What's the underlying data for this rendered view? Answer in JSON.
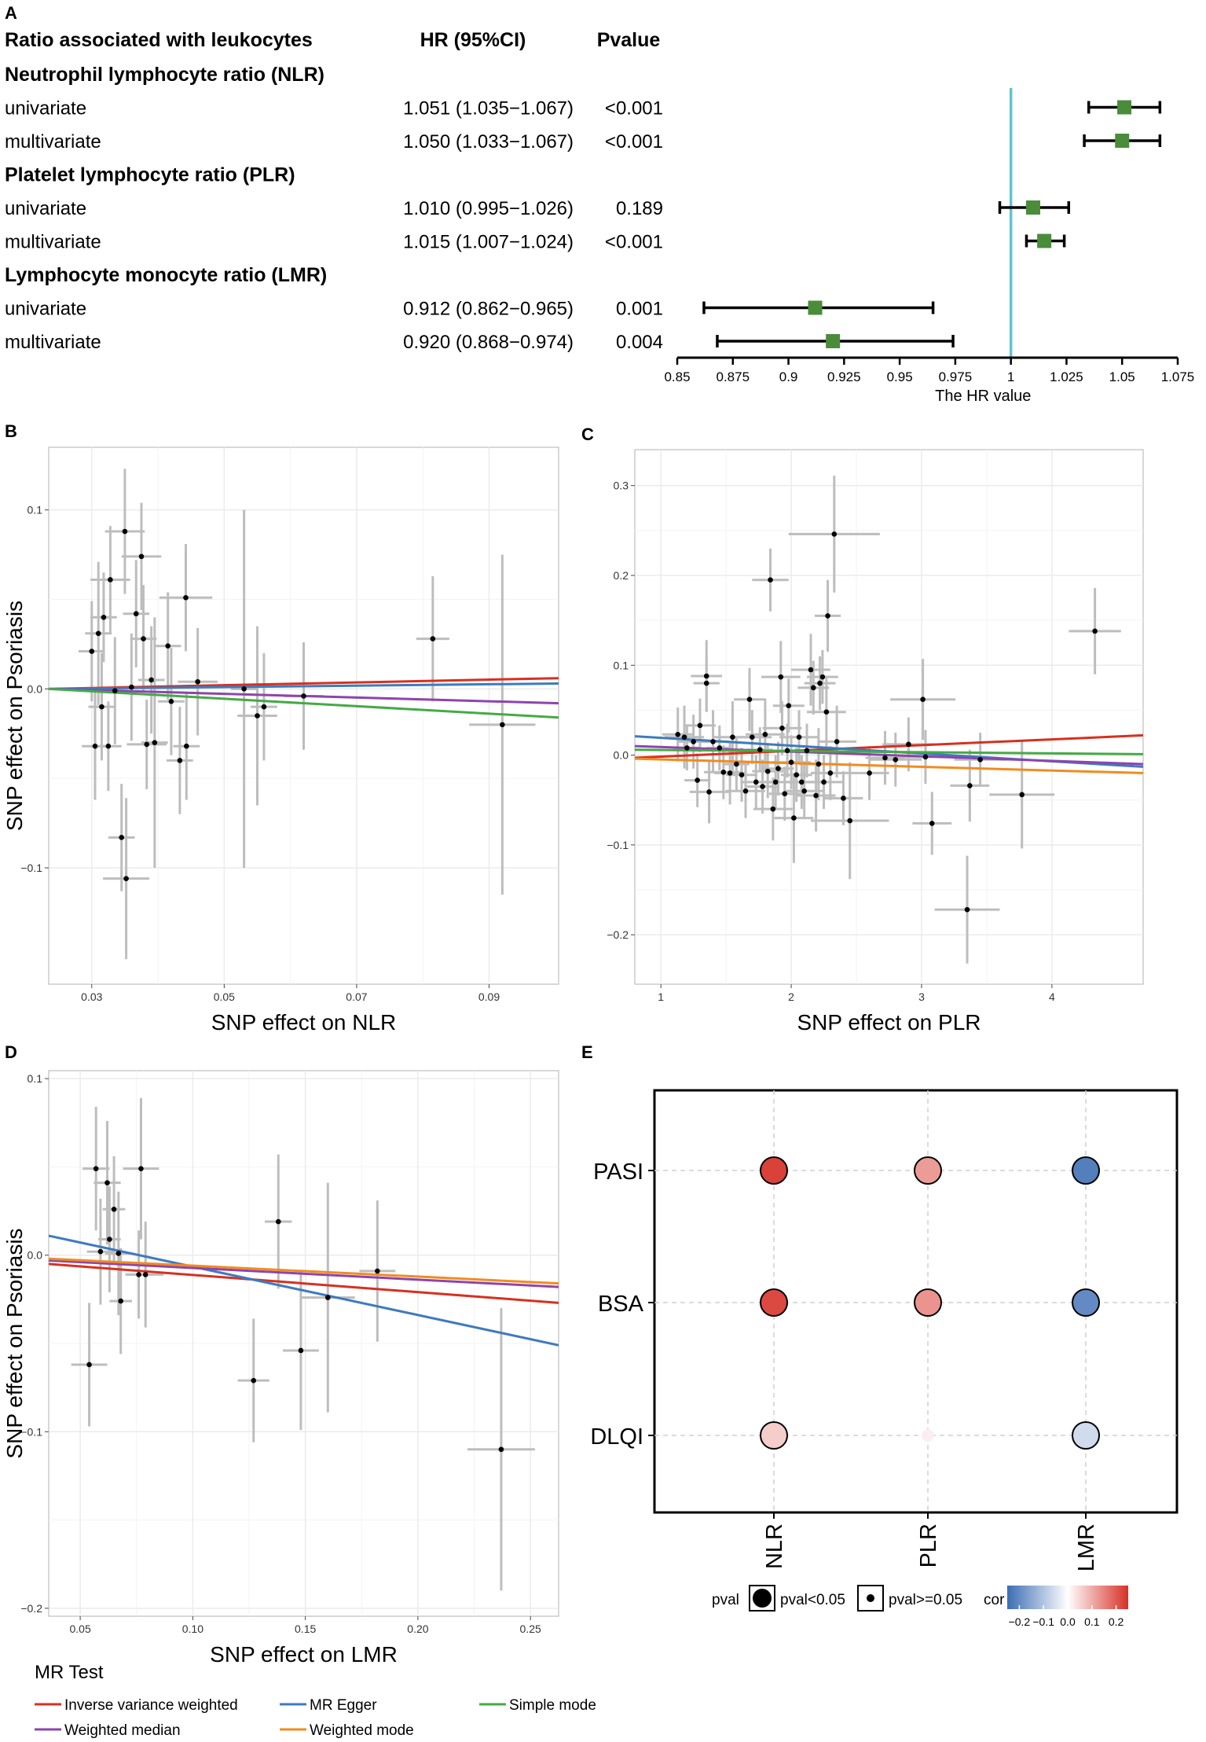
{
  "panel_labels": {
    "a": "A",
    "b": "B",
    "c": "C",
    "d": "D",
    "e": "E"
  },
  "chart_data": [
    {
      "id": "A",
      "type": "forest",
      "headers": {
        "group": "Ratio associated with leukocytes",
        "hr": "HR (95%CI)",
        "p": "Pvalue"
      },
      "rows": [
        {
          "label": "Neutrophil lymphocyte ratio (NLR)",
          "heading": true
        },
        {
          "label": "univariate",
          "hr_text": "1.051 (1.035−1.067)",
          "p_text": "<0.001",
          "hr": 1.051,
          "lo": 1.035,
          "hi": 1.067
        },
        {
          "label": "multivariate",
          "hr_text": "1.050 (1.033−1.067)",
          "p_text": "<0.001",
          "hr": 1.05,
          "lo": 1.033,
          "hi": 1.067
        },
        {
          "label": "Platelet lymphocyte ratio (PLR)",
          "heading": true
        },
        {
          "label": "univariate",
          "hr_text": "1.010 (0.995−1.026)",
          "p_text": "0.189",
          "hr": 1.01,
          "lo": 0.995,
          "hi": 1.026
        },
        {
          "label": "multivariate",
          "hr_text": "1.015 (1.007−1.024)",
          "p_text": "<0.001",
          "hr": 1.015,
          "lo": 1.007,
          "hi": 1.024
        },
        {
          "label": "Lymphocyte monocyte ratio (LMR)",
          "heading": true
        },
        {
          "label": "univariate",
          "hr_text": "0.912 (0.862−0.965)",
          "p_text": "0.001",
          "hr": 0.912,
          "lo": 0.862,
          "hi": 0.965
        },
        {
          "label": "multivariate",
          "hr_text": "0.920 (0.868−0.974)",
          "p_text": "0.004",
          "hr": 0.92,
          "lo": 0.868,
          "hi": 0.974
        }
      ],
      "ref_line": 1,
      "xlim": [
        0.85,
        1.075
      ],
      "ticks": [
        0.85,
        0.875,
        0.9,
        0.925,
        0.95,
        0.975,
        1,
        1.025,
        1.05,
        1.075
      ],
      "tick_labels": [
        "0.85",
        "0.875",
        "0.9",
        "0.925",
        "0.95",
        "0.975",
        "1",
        "1.025",
        "1.05",
        "1.075"
      ],
      "xlabel": "The HR value",
      "colors": {
        "marker": "#4a8c3a",
        "ref": "#5fc4d0"
      }
    },
    {
      "id": "B",
      "type": "scatter",
      "xlabel": "SNP effect on NLR",
      "ylabel": "SNP effect on Psoriasis",
      "xlim": [
        0.0235,
        0.1005
      ],
      "ylim": [
        -0.165,
        0.135
      ],
      "xticks": [
        0.03,
        0.05,
        0.07,
        0.09
      ],
      "xtick_labels": [
        "0.03",
        "0.05",
        "0.07",
        "0.09"
      ],
      "yticks": [
        -0.1,
        0.0,
        0.1
      ],
      "ytick_labels": [
        "−0.1",
        "0.0",
        "0.1"
      ],
      "points": [
        {
          "x": 0.03,
          "y": 0.021,
          "xe": 0.002,
          "ye": 0.028
        },
        {
          "x": 0.0305,
          "y": -0.032,
          "xe": 0.002,
          "ye": 0.03
        },
        {
          "x": 0.031,
          "y": 0.031,
          "xe": 0.002,
          "ye": 0.04
        },
        {
          "x": 0.0315,
          "y": -0.01,
          "xe": 0.002,
          "ye": 0.03
        },
        {
          "x": 0.0318,
          "y": 0.04,
          "xe": 0.002,
          "ye": 0.025
        },
        {
          "x": 0.0325,
          "y": -0.032,
          "xe": 0.002,
          "ye": 0.025
        },
        {
          "x": 0.0328,
          "y": 0.061,
          "xe": 0.003,
          "ye": 0.03
        },
        {
          "x": 0.0335,
          "y": -0.001,
          "xe": 0.002,
          "ye": 0.03
        },
        {
          "x": 0.0345,
          "y": -0.083,
          "xe": 0.002,
          "ye": 0.03
        },
        {
          "x": 0.035,
          "y": 0.088,
          "xe": 0.003,
          "ye": 0.035
        },
        {
          "x": 0.0352,
          "y": -0.106,
          "xe": 0.0035,
          "ye": 0.045
        },
        {
          "x": 0.036,
          "y": 0.001,
          "xe": 0.002,
          "ye": 0.03
        },
        {
          "x": 0.0367,
          "y": 0.042,
          "xe": 0.002,
          "ye": 0.03
        },
        {
          "x": 0.0375,
          "y": 0.074,
          "xe": 0.003,
          "ye": 0.03
        },
        {
          "x": 0.0378,
          "y": 0.028,
          "xe": 0.002,
          "ye": 0.03
        },
        {
          "x": 0.0383,
          "y": -0.031,
          "xe": 0.003,
          "ye": 0.025
        },
        {
          "x": 0.039,
          "y": 0.005,
          "xe": 0.002,
          "ye": 0.03
        },
        {
          "x": 0.0395,
          "y": -0.03,
          "xe": 0.002,
          "ye": 0.07
        },
        {
          "x": 0.0415,
          "y": 0.024,
          "xe": 0.002,
          "ye": 0.03
        },
        {
          "x": 0.042,
          "y": -0.007,
          "xe": 0.002,
          "ye": 0.03
        },
        {
          "x": 0.0433,
          "y": -0.04,
          "xe": 0.002,
          "ye": 0.03
        },
        {
          "x": 0.0442,
          "y": 0.051,
          "xe": 0.004,
          "ye": 0.03
        },
        {
          "x": 0.0443,
          "y": -0.032,
          "xe": 0.002,
          "ye": 0.03
        },
        {
          "x": 0.046,
          "y": 0.004,
          "xe": 0.003,
          "ye": 0.03
        },
        {
          "x": 0.053,
          "y": 0.0,
          "xe": 0.002,
          "ye": 0.1
        },
        {
          "x": 0.055,
          "y": -0.015,
          "xe": 0.003,
          "ye": 0.05
        },
        {
          "x": 0.056,
          "y": -0.01,
          "xe": 0.002,
          "ye": 0.03
        },
        {
          "x": 0.062,
          "y": -0.004,
          "xe": 0.003,
          "ye": 0.03
        },
        {
          "x": 0.0815,
          "y": 0.028,
          "xe": 0.0025,
          "ye": 0.035
        },
        {
          "x": 0.092,
          "y": -0.02,
          "xe": 0.005,
          "ye": 0.095
        }
      ],
      "lines": [
        {
          "method": "Inverse variance weighted",
          "y0": 0.0,
          "y1": 0.006
        },
        {
          "method": "MR Egger",
          "y0": 0.0,
          "y1": 0.003
        },
        {
          "method": "Weighted median",
          "y0": 0.0,
          "y1": -0.008
        },
        {
          "method": "Simple mode",
          "y0": 0.0,
          "y1": -0.016
        }
      ]
    },
    {
      "id": "C",
      "type": "scatter",
      "xlabel": "SNP effect on PLR",
      "ylabel": "",
      "xlim": [
        0.8,
        4.7
      ],
      "ylim": [
        -0.255,
        0.34
      ],
      "xticks": [
        1,
        2,
        3,
        4
      ],
      "xtick_labels": [
        "1",
        "2",
        "3",
        "4"
      ],
      "yticks": [
        -0.2,
        -0.1,
        0.0,
        0.1,
        0.2,
        0.3
      ],
      "ytick_labels": [
        "−0.2",
        "−0.1",
        "0.0",
        "0.1",
        "0.2",
        "0.3"
      ],
      "points": [
        {
          "x": 1.13,
          "y": 0.023,
          "xe": 0.12,
          "ye": 0.03
        },
        {
          "x": 1.18,
          "y": 0.02,
          "xe": 0.15,
          "ye": 0.035
        },
        {
          "x": 1.2,
          "y": 0.008,
          "xe": 0.1,
          "ye": 0.025
        },
        {
          "x": 1.25,
          "y": 0.015,
          "xe": 0.12,
          "ye": 0.03
        },
        {
          "x": 1.28,
          "y": -0.028,
          "xe": 0.1,
          "ye": 0.03
        },
        {
          "x": 1.3,
          "y": 0.033,
          "xe": 0.12,
          "ye": 0.03
        },
        {
          "x": 1.35,
          "y": 0.088,
          "xe": 0.12,
          "ye": 0.04
        },
        {
          "x": 1.35,
          "y": 0.08,
          "xe": 0.1,
          "ye": 0.03
        },
        {
          "x": 1.37,
          "y": -0.041,
          "xe": 0.15,
          "ye": 0.035
        },
        {
          "x": 1.4,
          "y": 0.015,
          "xe": 0.12,
          "ye": 0.035
        },
        {
          "x": 1.45,
          "y": 0.008,
          "xe": 0.1,
          "ye": 0.025
        },
        {
          "x": 1.48,
          "y": -0.019,
          "xe": 0.15,
          "ye": 0.03
        },
        {
          "x": 1.53,
          "y": -0.02,
          "xe": 0.12,
          "ye": 0.035
        },
        {
          "x": 1.55,
          "y": 0.02,
          "xe": 0.15,
          "ye": 0.04
        },
        {
          "x": 1.58,
          "y": -0.01,
          "xe": 0.1,
          "ye": 0.03
        },
        {
          "x": 1.62,
          "y": -0.022,
          "xe": 0.12,
          "ye": 0.03
        },
        {
          "x": 1.65,
          "y": -0.04,
          "xe": 0.15,
          "ye": 0.03
        },
        {
          "x": 1.68,
          "y": 0.062,
          "xe": 0.12,
          "ye": 0.035
        },
        {
          "x": 1.7,
          "y": 0.02,
          "xe": 0.15,
          "ye": 0.03
        },
        {
          "x": 1.73,
          "y": -0.03,
          "xe": 0.12,
          "ye": 0.03
        },
        {
          "x": 1.76,
          "y": 0.006,
          "xe": 0.1,
          "ye": 0.025
        },
        {
          "x": 1.78,
          "y": -0.035,
          "xe": 0.12,
          "ye": 0.03
        },
        {
          "x": 1.8,
          "y": 0.023,
          "xe": 0.15,
          "ye": 0.04
        },
        {
          "x": 1.82,
          "y": -0.018,
          "xe": 0.12,
          "ye": 0.03
        },
        {
          "x": 1.84,
          "y": 0.195,
          "xe": 0.14,
          "ye": 0.035
        },
        {
          "x": 1.86,
          "y": -0.06,
          "xe": 0.15,
          "ye": 0.035
        },
        {
          "x": 1.88,
          "y": -0.03,
          "xe": 0.12,
          "ye": 0.03
        },
        {
          "x": 1.9,
          "y": -0.015,
          "xe": 0.12,
          "ye": 0.03
        },
        {
          "x": 1.92,
          "y": 0.087,
          "xe": 0.15,
          "ye": 0.04
        },
        {
          "x": 1.93,
          "y": 0.03,
          "xe": 0.15,
          "ye": 0.03
        },
        {
          "x": 1.95,
          "y": -0.043,
          "xe": 0.12,
          "ye": 0.03
        },
        {
          "x": 1.97,
          "y": 0.005,
          "xe": 0.1,
          "ye": 0.03
        },
        {
          "x": 1.98,
          "y": 0.055,
          "xe": 0.12,
          "ye": 0.03
        },
        {
          "x": 2.0,
          "y": -0.008,
          "xe": 0.15,
          "ye": 0.03
        },
        {
          "x": 2.02,
          "y": -0.07,
          "xe": 0.15,
          "ye": 0.05
        },
        {
          "x": 2.04,
          "y": -0.022,
          "xe": 0.12,
          "ye": 0.03
        },
        {
          "x": 2.06,
          "y": 0.02,
          "xe": 0.15,
          "ye": 0.03
        },
        {
          "x": 2.08,
          "y": -0.03,
          "xe": 0.12,
          "ye": 0.03
        },
        {
          "x": 2.1,
          "y": -0.04,
          "xe": 0.15,
          "ye": 0.03
        },
        {
          "x": 2.12,
          "y": 0.005,
          "xe": 0.1,
          "ye": 0.03
        },
        {
          "x": 2.15,
          "y": 0.095,
          "xe": 0.15,
          "ye": 0.04
        },
        {
          "x": 2.17,
          "y": 0.075,
          "xe": 0.12,
          "ye": 0.03
        },
        {
          "x": 2.19,
          "y": -0.045,
          "xe": 0.15,
          "ye": 0.04
        },
        {
          "x": 2.21,
          "y": -0.01,
          "xe": 0.15,
          "ye": 0.04
        },
        {
          "x": 2.22,
          "y": 0.08,
          "xe": 0.12,
          "ye": 0.03
        },
        {
          "x": 2.24,
          "y": 0.087,
          "xe": 0.12,
          "ye": 0.03
        },
        {
          "x": 2.25,
          "y": -0.03,
          "xe": 0.15,
          "ye": 0.03
        },
        {
          "x": 2.27,
          "y": 0.048,
          "xe": 0.15,
          "ye": 0.04
        },
        {
          "x": 2.28,
          "y": 0.155,
          "xe": 0.1,
          "ye": 0.04
        },
        {
          "x": 2.3,
          "y": -0.02,
          "xe": 0.15,
          "ye": 0.03
        },
        {
          "x": 2.33,
          "y": 0.246,
          "xe": 0.35,
          "ye": 0.065
        },
        {
          "x": 2.35,
          "y": 0.015,
          "xe": 0.15,
          "ye": 0.04
        },
        {
          "x": 2.4,
          "y": -0.048,
          "xe": 0.15,
          "ye": 0.03
        },
        {
          "x": 2.45,
          "y": -0.073,
          "xe": 0.3,
          "ye": 0.065
        },
        {
          "x": 2.6,
          "y": -0.02,
          "xe": 0.15,
          "ye": 0.03
        },
        {
          "x": 2.72,
          "y": -0.003,
          "xe": 0.15,
          "ye": 0.03
        },
        {
          "x": 2.8,
          "y": -0.005,
          "xe": 0.2,
          "ye": 0.03
        },
        {
          "x": 2.9,
          "y": 0.012,
          "xe": 0.2,
          "ye": 0.03
        },
        {
          "x": 3.01,
          "y": 0.062,
          "xe": 0.25,
          "ye": 0.045
        },
        {
          "x": 3.03,
          "y": -0.002,
          "xe": 0.2,
          "ye": 0.03
        },
        {
          "x": 3.08,
          "y": -0.076,
          "xe": 0.15,
          "ye": 0.035
        },
        {
          "x": 3.35,
          "y": -0.172,
          "xe": 0.25,
          "ye": 0.06
        },
        {
          "x": 3.37,
          "y": -0.034,
          "xe": 0.15,
          "ye": 0.04
        },
        {
          "x": 3.45,
          "y": -0.005,
          "xe": 0.2,
          "ye": 0.03
        },
        {
          "x": 3.77,
          "y": -0.044,
          "xe": 0.25,
          "ye": 0.06
        },
        {
          "x": 4.33,
          "y": 0.138,
          "xe": 0.2,
          "ye": 0.048
        }
      ],
      "lines": [
        {
          "method": "Inverse variance weighted",
          "y0": -0.003,
          "y1": 0.022
        },
        {
          "method": "MR Egger",
          "y0": 0.021,
          "y1": -0.013
        },
        {
          "method": "Weighted median",
          "y0": 0.01,
          "y1": -0.01
        },
        {
          "method": "Simple mode",
          "y0": 0.006,
          "y1": 0.001
        },
        {
          "method": "Weighted mode",
          "y0": -0.004,
          "y1": -0.02
        }
      ]
    },
    {
      "id": "D",
      "type": "scatter",
      "xlabel": "SNP effect on LMR",
      "ylabel": "SNP effect on Psoriasis",
      "xlim": [
        0.036,
        0.2625
      ],
      "ylim": [
        -0.2045,
        0.1045
      ],
      "xticks": [
        0.05,
        0.1,
        0.15,
        0.2,
        0.25
      ],
      "xtick_labels": [
        "0.05",
        "0.10",
        "0.15",
        "0.20",
        "0.25"
      ],
      "yticks": [
        -0.2,
        -0.1,
        0.0,
        0.1
      ],
      "ytick_labels": [
        "−0.2",
        "−0.1",
        "0.0",
        "0.1"
      ],
      "points": [
        {
          "x": 0.054,
          "y": -0.062,
          "xe": 0.008,
          "ye": 0.035
        },
        {
          "x": 0.057,
          "y": 0.049,
          "xe": 0.006,
          "ye": 0.035
        },
        {
          "x": 0.059,
          "y": 0.002,
          "xe": 0.006,
          "ye": 0.03
        },
        {
          "x": 0.062,
          "y": 0.041,
          "xe": 0.006,
          "ye": 0.035
        },
        {
          "x": 0.063,
          "y": 0.009,
          "xe": 0.005,
          "ye": 0.03
        },
        {
          "x": 0.065,
          "y": 0.026,
          "xe": 0.005,
          "ye": 0.03
        },
        {
          "x": 0.067,
          "y": 0.001,
          "xe": 0.006,
          "ye": 0.035
        },
        {
          "x": 0.068,
          "y": -0.026,
          "xe": 0.005,
          "ye": 0.03
        },
        {
          "x": 0.076,
          "y": -0.011,
          "xe": 0.006,
          "ye": 0.025
        },
        {
          "x": 0.077,
          "y": 0.049,
          "xe": 0.008,
          "ye": 0.04
        },
        {
          "x": 0.079,
          "y": -0.011,
          "xe": 0.008,
          "ye": 0.03
        },
        {
          "x": 0.127,
          "y": -0.071,
          "xe": 0.007,
          "ye": 0.035
        },
        {
          "x": 0.138,
          "y": 0.019,
          "xe": 0.006,
          "ye": 0.038
        },
        {
          "x": 0.148,
          "y": -0.054,
          "xe": 0.008,
          "ye": 0.045
        },
        {
          "x": 0.16,
          "y": -0.024,
          "xe": 0.012,
          "ye": 0.065
        },
        {
          "x": 0.182,
          "y": -0.009,
          "xe": 0.008,
          "ye": 0.04
        },
        {
          "x": 0.237,
          "y": -0.11,
          "xe": 0.015,
          "ye": 0.08
        }
      ],
      "lines": [
        {
          "method": "Inverse variance weighted",
          "y0": -0.005,
          "y1": -0.027
        },
        {
          "method": "MR Egger",
          "y0": 0.011,
          "y1": -0.051
        },
        {
          "method": "Weighted median",
          "y0": -0.003,
          "y1": -0.018
        },
        {
          "method": "Weighted mode",
          "y0": -0.002,
          "y1": -0.016
        }
      ]
    },
    {
      "id": "E",
      "type": "heatmap",
      "rows": [
        "PASI",
        "BSA",
        "DLQI"
      ],
      "cols": [
        "NLR",
        "PLR",
        "LMR"
      ],
      "cor": [
        [
          0.23,
          0.12,
          -0.22
        ],
        [
          0.22,
          0.13,
          -0.2
        ],
        [
          0.06,
          0.02,
          -0.06
        ]
      ],
      "significant": [
        [
          true,
          true,
          true
        ],
        [
          true,
          true,
          true
        ],
        [
          true,
          false,
          true
        ]
      ],
      "legend": {
        "pval_title": "pval",
        "sig_label": "pval<0.05",
        "nonsig_label": "pval>=0.05",
        "cor_title": "cor",
        "cor_ticks": [
          "−0.2",
          "−0.1",
          "0.0",
          "0.1",
          "0.2"
        ],
        "cor_range": [
          -0.25,
          0.25
        ]
      }
    }
  ],
  "mr_legend": {
    "title": "MR Test",
    "items": [
      {
        "label": "Inverse variance weighted",
        "color": "#d7301f"
      },
      {
        "label": "MR Egger",
        "color": "#3d7bbf"
      },
      {
        "label": "Simple mode",
        "color": "#45aa45"
      },
      {
        "label": "Weighted median",
        "color": "#8e44ad"
      },
      {
        "label": "Weighted mode",
        "color": "#f28b1f"
      }
    ]
  },
  "colors": {
    "errorbar": "#bdbdbd",
    "grid": "#ebebeb",
    "cor_low": "#3c6db3",
    "cor_mid": "#ffffff",
    "cor_high": "#d73027"
  }
}
